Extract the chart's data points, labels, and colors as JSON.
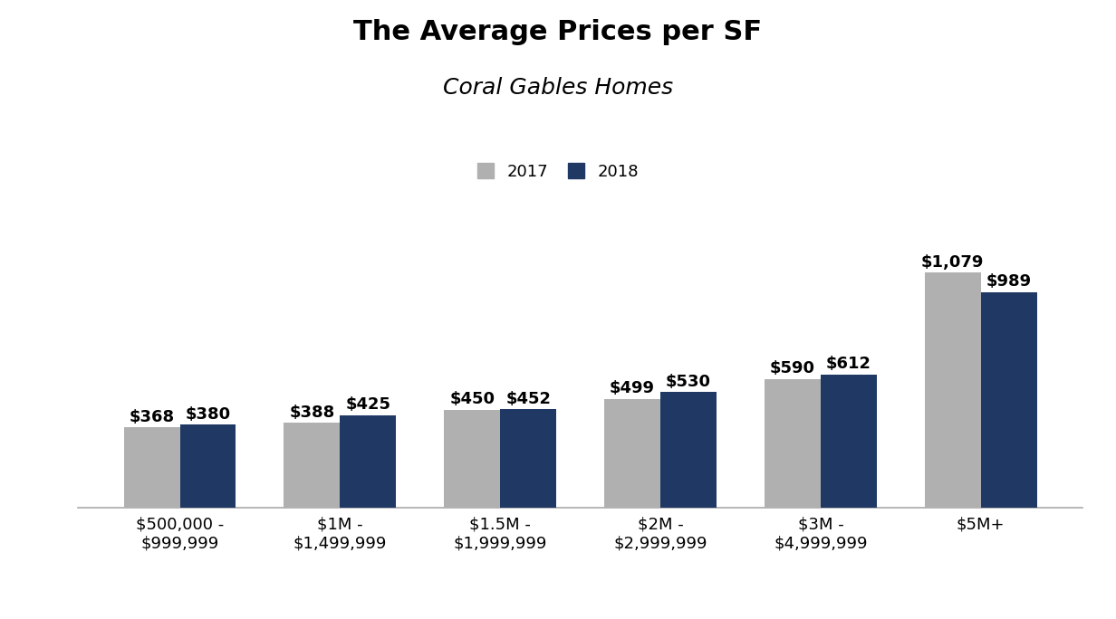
{
  "title": "The Average Prices per SF",
  "subtitle": "Coral Gables Homes",
  "categories": [
    "$500,000 -\n$999,999",
    "$1M -\n$1,499,999",
    "$1.5M -\n$1,999,999",
    "$2M -\n$2,999,999",
    "$3M -\n$4,999,999",
    "$5M+"
  ],
  "values_2017": [
    368,
    388,
    450,
    499,
    590,
    1079
  ],
  "values_2018": [
    380,
    425,
    452,
    530,
    612,
    989
  ],
  "labels_2017": [
    "$368",
    "$388",
    "$450",
    "$499",
    "$590",
    "$1,079"
  ],
  "labels_2018": [
    "$380",
    "$425",
    "$452",
    "$530",
    "$612",
    "$989"
  ],
  "color_2017": "#b0b0b0",
  "color_2018": "#1f3864",
  "background_color": "#ffffff",
  "title_fontsize": 22,
  "subtitle_fontsize": 18,
  "legend_fontsize": 13,
  "label_fontsize": 13,
  "tick_fontsize": 13,
  "bar_width": 0.35,
  "ylim": [
    0,
    1250
  ]
}
